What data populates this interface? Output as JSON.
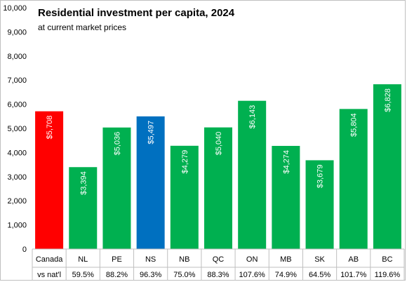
{
  "chart_data": {
    "type": "bar",
    "title": "Residential investment per capita, 2024",
    "subtitle": "at current market prices",
    "categories": [
      "Canada",
      "NL",
      "PE",
      "NS",
      "NB",
      "QC",
      "ON",
      "MB",
      "SK",
      "AB",
      "BC"
    ],
    "values": [
      5708,
      3394,
      5036,
      5497,
      4279,
      5040,
      6143,
      4274,
      3679,
      5804,
      6828
    ],
    "value_labels": [
      "$5,708",
      "$3,394",
      "$5,036",
      "$5,497",
      "$4,279",
      "$5,040",
      "$6,143",
      "$4,274",
      "$3,679",
      "$5,804",
      "$6,828"
    ],
    "row_label": "vs nat'l",
    "vs_national": [
      "59.5%",
      "88.2%",
      "96.3%",
      "75.0%",
      "88.3%",
      "107.6%",
      "74.9%",
      "64.5%",
      "101.7%",
      "119.6%"
    ],
    "ylim": [
      0,
      10000
    ],
    "yticks": [
      0,
      1000,
      2000,
      3000,
      4000,
      5000,
      6000,
      7000,
      8000,
      9000,
      10000
    ],
    "ytick_labels": [
      "0",
      "1,000",
      "2,000",
      "3,000",
      "4,000",
      "5,000",
      "6,000",
      "7,000",
      "8,000",
      "9,000",
      "10,000"
    ],
    "bar_colors": [
      "#ff0000",
      "#00b050",
      "#00b050",
      "#0070c0",
      "#00b050",
      "#00b050",
      "#00b050",
      "#00b050",
      "#00b050",
      "#00b050",
      "#00b050"
    ],
    "grid": false,
    "xlabel": "",
    "ylabel": ""
  }
}
